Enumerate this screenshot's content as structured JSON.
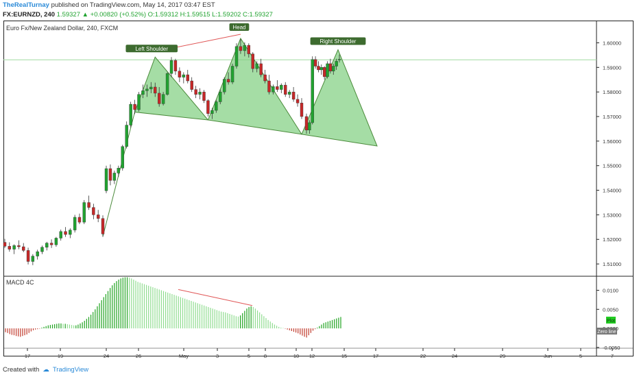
{
  "header": {
    "author": "TheRealTurnay",
    "published": "published on TradingView.com, May 14, 2017 03:47 EST",
    "symbol": "FX:EURNZD, 240",
    "last": "1.59327",
    "change": "▲ +0.00820 (+0.52%)",
    "ohlc": "O:1.59312 H:1.59515 L:1.59202 C:1.59327"
  },
  "footer": {
    "created_with": "Created with",
    "brand": "TradingView"
  },
  "colors": {
    "up": "#21a330",
    "down": "#c62828",
    "pattern_fill": "#7fcf7f",
    "pattern_line": "#4a8a3a",
    "neckline": "#9fd99f",
    "macd_pos_dark": "#1fa31f",
    "macd_neg": "#c0392b"
  },
  "chart_data": [
    {
      "type": "candlestick",
      "title": "Euro Fx/New Zealand Dollar, 240, FXCM",
      "y_ticks": [
        "1.60000",
        "1.59000",
        "1.58000",
        "1.57000",
        "1.56000",
        "1.55000",
        "1.54000",
        "1.53000",
        "1.52000",
        "1.51000"
      ],
      "ylim": [
        1.505,
        1.6085
      ],
      "x_ticks": [
        "17",
        "19",
        "24",
        "26",
        "May",
        "3",
        "5",
        "8",
        "10",
        "12",
        "15",
        "17",
        "22",
        "24",
        "29",
        "Jun",
        "5",
        "7"
      ],
      "annotations": [
        "Left Shoulder",
        "Head",
        "Right Shoulder"
      ],
      "horizontal_line": 1.5931,
      "candles": [
        [
          1.5188,
          1.5202,
          1.5165,
          1.5172
        ],
        [
          1.5172,
          1.5188,
          1.515,
          1.516
        ],
        [
          1.516,
          1.518,
          1.514,
          1.5175
        ],
        [
          1.5175,
          1.5196,
          1.516,
          1.517
        ],
        [
          1.517,
          1.5185,
          1.5148,
          1.5155
        ],
        [
          1.5155,
          1.5166,
          1.5098,
          1.511
        ],
        [
          1.511,
          1.514,
          1.5095,
          1.5132
        ],
        [
          1.5132,
          1.5158,
          1.5118,
          1.515
        ],
        [
          1.515,
          1.5175,
          1.514,
          1.5168
        ],
        [
          1.5168,
          1.519,
          1.5155,
          1.5185
        ],
        [
          1.5185,
          1.52,
          1.5165,
          1.5178
        ],
        [
          1.5178,
          1.521,
          1.517,
          1.5205
        ],
        [
          1.5205,
          1.524,
          1.5195,
          1.5232
        ],
        [
          1.5232,
          1.525,
          1.521,
          1.522
        ],
        [
          1.522,
          1.5245,
          1.5205,
          1.5238
        ],
        [
          1.5238,
          1.53,
          1.5228,
          1.529
        ],
        [
          1.529,
          1.5305,
          1.5262,
          1.527
        ],
        [
          1.527,
          1.536,
          1.5262,
          1.535
        ],
        [
          1.535,
          1.5378,
          1.532,
          1.533
        ],
        [
          1.533,
          1.5345,
          1.5282,
          1.53
        ],
        [
          1.53,
          1.532,
          1.527,
          1.5285
        ],
        [
          1.5285,
          1.5298,
          1.521,
          1.5222
        ],
        [
          1.5398,
          1.55,
          1.5388,
          1.5488
        ],
        [
          1.5488,
          1.5505,
          1.542,
          1.544
        ],
        [
          1.544,
          1.548,
          1.5425,
          1.547
        ],
        [
          1.547,
          1.55,
          1.5455,
          1.549
        ],
        [
          1.549,
          1.5585,
          1.548,
          1.5578
        ],
        [
          1.5578,
          1.568,
          1.557,
          1.5665
        ],
        [
          1.5665,
          1.576,
          1.5655,
          1.575
        ],
        [
          1.575,
          1.5768,
          1.571,
          1.5728
        ],
        [
          1.5728,
          1.58,
          1.572,
          1.579
        ],
        [
          1.579,
          1.583,
          1.5775,
          1.5805
        ],
        [
          1.5805,
          1.583,
          1.578,
          1.5812
        ],
        [
          1.5812,
          1.584,
          1.5795,
          1.582
        ],
        [
          1.582,
          1.5838,
          1.578,
          1.5795
        ],
        [
          1.5795,
          1.582,
          1.574,
          1.5752
        ],
        [
          1.5752,
          1.58,
          1.5745,
          1.579
        ],
        [
          1.579,
          1.588,
          1.5785,
          1.5875
        ],
        [
          1.5875,
          1.5942,
          1.586,
          1.5928
        ],
        [
          1.5928,
          1.5935,
          1.587,
          1.5885
        ],
        [
          1.5885,
          1.59,
          1.584,
          1.586
        ],
        [
          1.586,
          1.588,
          1.5835,
          1.587
        ],
        [
          1.587,
          1.589,
          1.5835,
          1.5845
        ],
        [
          1.5845,
          1.586,
          1.58,
          1.581
        ],
        [
          1.581,
          1.5825,
          1.5775,
          1.579
        ],
        [
          1.579,
          1.5815,
          1.577,
          1.58
        ],
        [
          1.58,
          1.5808,
          1.5755,
          1.5765
        ],
        [
          1.5765,
          1.577,
          1.57,
          1.5712
        ],
        [
          1.5712,
          1.5735,
          1.569,
          1.5725
        ],
        [
          1.5725,
          1.5768,
          1.5715,
          1.576
        ],
        [
          1.576,
          1.581,
          1.575,
          1.58
        ],
        [
          1.58,
          1.586,
          1.579,
          1.5852
        ],
        [
          1.5852,
          1.588,
          1.583,
          1.584
        ],
        [
          1.584,
          1.5915,
          1.5832,
          1.5905
        ],
        [
          1.5905,
          1.5998,
          1.5895,
          1.5985
        ],
        [
          1.5985,
          1.6015,
          1.5955,
          1.5968
        ],
        [
          1.5968,
          1.6002,
          1.5945,
          1.599
        ],
        [
          1.599,
          1.5998,
          1.594,
          1.5955
        ],
        [
          1.5955,
          1.5962,
          1.588,
          1.5895
        ],
        [
          1.5895,
          1.5925,
          1.588,
          1.5915
        ],
        [
          1.5915,
          1.5935,
          1.586,
          1.587
        ],
        [
          1.587,
          1.589,
          1.5835,
          1.5845
        ],
        [
          1.5845,
          1.587,
          1.579,
          1.58
        ],
        [
          1.58,
          1.583,
          1.579,
          1.5822
        ],
        [
          1.5822,
          1.5848,
          1.58,
          1.581
        ],
        [
          1.581,
          1.5835,
          1.5795,
          1.5828
        ],
        [
          1.5828,
          1.584,
          1.578,
          1.579
        ],
        [
          1.579,
          1.5808,
          1.5775,
          1.58
        ],
        [
          1.58,
          1.582,
          1.576,
          1.577
        ],
        [
          1.577,
          1.579,
          1.574,
          1.5755
        ],
        [
          1.5755,
          1.5775,
          1.569,
          1.57
        ],
        [
          1.57,
          1.5712,
          1.563,
          1.5645
        ],
        [
          1.5645,
          1.5685,
          1.563,
          1.5675
        ],
        [
          1.5675,
          1.5945,
          1.5668,
          1.5932
        ],
        [
          1.5932,
          1.5945,
          1.5895,
          1.5905
        ],
        [
          1.5905,
          1.5925,
          1.588,
          1.589
        ],
        [
          1.589,
          1.5912,
          1.587,
          1.59
        ],
        [
          1.59,
          1.5905,
          1.585,
          1.5862
        ],
        [
          1.5862,
          1.5925,
          1.5855,
          1.5915
        ],
        [
          1.5915,
          1.5935,
          1.5875,
          1.5885
        ],
        [
          1.5885,
          1.5915,
          1.587,
          1.5905
        ],
        [
          1.5905,
          1.5935,
          1.589,
          1.5925
        ],
        [
          1.5931,
          1.5952,
          1.592,
          1.5933
        ]
      ]
    },
    {
      "type": "histogram",
      "title": "MACD 4C",
      "y_ticks": [
        "0.0100",
        "0.0050",
        "0.0000",
        "-0.0050"
      ],
      "ylim": [
        -0.0052,
        0.0135
      ],
      "labels": [
        "Plot",
        "Zero line"
      ],
      "values": [
        -0.001,
        -0.0012,
        -0.0015,
        -0.0017,
        -0.0018,
        -0.002,
        -0.0021,
        -0.0022,
        -0.002,
        -0.0018,
        -0.0016,
        -0.0012,
        -0.0008,
        -0.0005,
        -0.0003,
        -0.0002,
        -0.0001,
        0.0002,
        0.0004,
        0.0006,
        0.0008,
        0.0009,
        0.001,
        0.0011,
        0.0012,
        0.0013,
        0.0013,
        0.0012,
        0.0012,
        0.0011,
        0.001,
        0.0009,
        0.0008,
        0.0008,
        0.001,
        0.0013,
        0.0016,
        0.002,
        0.0025,
        0.003,
        0.0036,
        0.0043,
        0.005,
        0.0058,
        0.0066,
        0.0074,
        0.0082,
        0.009,
        0.0098,
        0.0106,
        0.0113,
        0.0119,
        0.0124,
        0.0128,
        0.0131,
        0.0133,
        0.0134,
        0.0134,
        0.0133,
        0.0131,
        0.0128,
        0.0125,
        0.0122,
        0.012,
        0.0118,
        0.0116,
        0.0114,
        0.0112,
        0.011,
        0.0108,
        0.0106,
        0.0104,
        0.0102,
        0.01,
        0.0098,
        0.0096,
        0.0094,
        0.0092,
        0.009,
        0.0088,
        0.0086,
        0.0084,
        0.0082,
        0.008,
        0.0078,
        0.0076,
        0.0074,
        0.0072,
        0.007,
        0.0068,
        0.0066,
        0.0064,
        0.0062,
        0.006,
        0.0058,
        0.0056,
        0.0054,
        0.0052,
        0.005,
        0.0048,
        0.0046,
        0.0044,
        0.0043,
        0.0042,
        0.004,
        0.0038,
        0.0036,
        0.0034,
        0.0032,
        0.0031,
        0.0034,
        0.004,
        0.0046,
        0.0052,
        0.0056,
        0.0058,
        0.0056,
        0.0052,
        0.0047,
        0.0042,
        0.0037,
        0.0032,
        0.0027,
        0.0022,
        0.0018,
        0.0014,
        0.001,
        0.0007,
        0.0004,
        0.0002,
        0.0001,
        -0.0001,
        -0.0003,
        -0.0005,
        -0.0007,
        -0.0009,
        -0.0011,
        -0.0013,
        -0.0016,
        -0.0019,
        -0.0022,
        -0.0024,
        -0.0018,
        -0.0012,
        -0.0006,
        -0.0002,
        0.0002,
        0.0006,
        0.001,
        0.0014,
        0.0016,
        0.0018,
        0.002,
        0.0022,
        0.0024,
        0.0026,
        0.0028,
        0.003
      ]
    }
  ]
}
